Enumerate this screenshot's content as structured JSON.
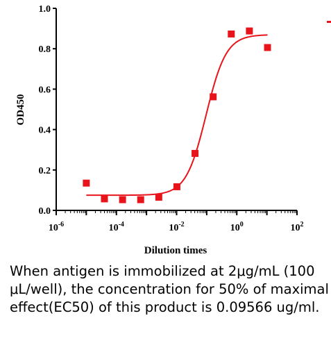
{
  "chart_data": {
    "type": "scatter",
    "xlabel": "Dilution times",
    "ylabel": "OD450",
    "x_scale": "log",
    "xlim": [
      1e-06,
      100
    ],
    "ylim": [
      0,
      1.0
    ],
    "x_ticks": [
      {
        "value": 1e-06,
        "base": "10",
        "exp": "-6"
      },
      {
        "value": 0.0001,
        "base": "10",
        "exp": "-4"
      },
      {
        "value": 0.01,
        "base": "10",
        "exp": "-2"
      },
      {
        "value": 1,
        "base": "10",
        "exp": "0"
      },
      {
        "value": 100,
        "base": "10",
        "exp": "2"
      }
    ],
    "y_ticks": [
      {
        "value": 0.0,
        "label": "0.0"
      },
      {
        "value": 0.2,
        "label": "0.2"
      },
      {
        "value": 0.4,
        "label": "0.4"
      },
      {
        "value": 0.6,
        "label": "0.6"
      },
      {
        "value": 0.8,
        "label": "0.8"
      },
      {
        "value": 1.0,
        "label": "1.0"
      }
    ],
    "series": [
      {
        "color": "#e8141b",
        "marker": "square",
        "x": [
          1e-05,
          4e-05,
          0.00016,
          0.00064,
          0.00256,
          0.01024,
          0.04096,
          0.16384,
          0.65536,
          2.62144,
          10.48576
        ],
        "y": [
          0.135,
          0.057,
          0.053,
          0.053,
          0.065,
          0.117,
          0.282,
          0.562,
          0.873,
          0.888,
          0.806
        ]
      }
    ],
    "fit_curve": {
      "color": "#e8141b",
      "type": "4PL",
      "bottom": 0.075,
      "top": 0.87,
      "ec50": 0.09566,
      "hill": 1.3,
      "x_range": [
        1e-05,
        10.48576
      ]
    },
    "legend_marker_color": "#e8141b",
    "grid": false
  },
  "caption": "When antigen is immobilized at 2μg/mL (100 μL/well), the concentration for 50% of maximal effect(EC50) of this product is 0.09566 ug/ml."
}
